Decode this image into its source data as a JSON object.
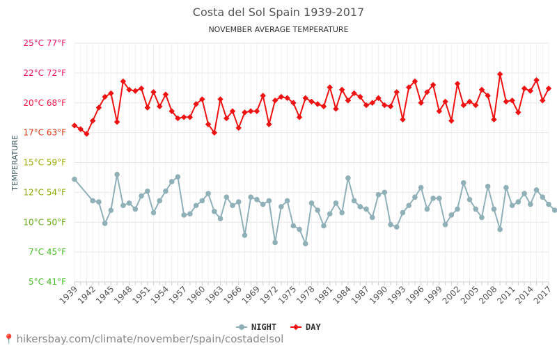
{
  "chart_data": {
    "type": "line",
    "title": "Costa del Sol Spain 1939-2017",
    "subtitle": "NOVEMBER AVERAGE TEMPERATURE",
    "ylabel": "TEMPERATURE",
    "ylim": [
      5,
      25
    ],
    "yticks": [
      {
        "value": 5,
        "label": "5°C 41°F",
        "color": "#44bb22"
      },
      {
        "value": 7.5,
        "label": "7°C 45°F",
        "color": "#44bb22"
      },
      {
        "value": 10,
        "label": "10°C 50°F",
        "color": "#66aa11"
      },
      {
        "value": 12.5,
        "label": "12°C 54°F",
        "color": "#88aa00"
      },
      {
        "value": 15,
        "label": "15°C 59°F",
        "color": "#99aa00"
      },
      {
        "value": 17.5,
        "label": "17°C 63°F",
        "color": "#dd3311"
      },
      {
        "value": 20,
        "label": "20°C 68°F",
        "color": "#ee1144"
      },
      {
        "value": 22.5,
        "label": "22°C 72°F",
        "color": "#ee1155"
      },
      {
        "value": 25,
        "label": "25°C 77°F",
        "color": "#ee1166"
      }
    ],
    "x_tick_labels": [
      "1939",
      "1942",
      "1945",
      "1948",
      "1951",
      "1954",
      "1957",
      "1960",
      "1963",
      "1966",
      "1969",
      "1972",
      "1975",
      "1978",
      "1981",
      "1984",
      "1987",
      "1990",
      "1993",
      "1996",
      "1999",
      "2002",
      "2005",
      "2008",
      "2011",
      "2014",
      "2017"
    ],
    "x_start": 1939,
    "x_end": 2017,
    "grid": true,
    "legend_position": "bottom",
    "series": [
      {
        "name": "NIGHT",
        "color": "#90b0b8",
        "points": [
          [
            1939,
            13.6
          ],
          [
            1942,
            11.8
          ],
          [
            1943,
            11.7
          ],
          [
            1944,
            9.9
          ],
          [
            1945,
            11.0
          ],
          [
            1946,
            14.0
          ],
          [
            1947,
            11.4
          ],
          [
            1948,
            11.6
          ],
          [
            1949,
            11.1
          ],
          [
            1950,
            12.2
          ],
          [
            1951,
            12.6
          ],
          [
            1952,
            10.8
          ],
          [
            1953,
            11.8
          ],
          [
            1954,
            12.6
          ],
          [
            1955,
            13.4
          ],
          [
            1956,
            13.8
          ],
          [
            1957,
            10.6
          ],
          [
            1958,
            10.7
          ],
          [
            1959,
            11.4
          ],
          [
            1960,
            11.8
          ],
          [
            1961,
            12.4
          ],
          [
            1962,
            10.9
          ],
          [
            1963,
            10.3
          ],
          [
            1964,
            12.1
          ],
          [
            1965,
            11.4
          ],
          [
            1966,
            11.7
          ],
          [
            1967,
            8.9
          ],
          [
            1968,
            12.1
          ],
          [
            1969,
            11.9
          ],
          [
            1970,
            11.5
          ],
          [
            1971,
            11.8
          ],
          [
            1972,
            8.3
          ],
          [
            1973,
            11.3
          ],
          [
            1974,
            11.8
          ],
          [
            1975,
            9.7
          ],
          [
            1976,
            9.4
          ],
          [
            1977,
            8.2
          ],
          [
            1978,
            11.6
          ],
          [
            1979,
            11.0
          ],
          [
            1980,
            9.7
          ],
          [
            1981,
            10.7
          ],
          [
            1982,
            11.6
          ],
          [
            1983,
            10.8
          ],
          [
            1984,
            13.7
          ],
          [
            1985,
            11.8
          ],
          [
            1986,
            11.3
          ],
          [
            1987,
            11.1
          ],
          [
            1988,
            10.4
          ],
          [
            1989,
            12.3
          ],
          [
            1990,
            12.5
          ],
          [
            1991,
            9.8
          ],
          [
            1992,
            9.6
          ],
          [
            1993,
            10.8
          ],
          [
            1994,
            11.4
          ],
          [
            1995,
            12.1
          ],
          [
            1996,
            12.9
          ],
          [
            1997,
            11.1
          ],
          [
            1998,
            12.0
          ],
          [
            1999,
            12.0
          ],
          [
            2000,
            9.8
          ],
          [
            2001,
            10.6
          ],
          [
            2002,
            11.1
          ],
          [
            2003,
            13.3
          ],
          [
            2004,
            11.9
          ],
          [
            2005,
            11.1
          ],
          [
            2006,
            10.4
          ],
          [
            2007,
            13.0
          ],
          [
            2008,
            11.1
          ],
          [
            2009,
            9.4
          ],
          [
            2010,
            12.9
          ],
          [
            2011,
            11.4
          ],
          [
            2012,
            11.7
          ],
          [
            2013,
            12.4
          ],
          [
            2014,
            11.5
          ],
          [
            2015,
            12.7
          ],
          [
            2016,
            12.1
          ],
          [
            2017,
            11.5
          ],
          [
            2018,
            11.0
          ]
        ]
      },
      {
        "name": "DAY",
        "color": "#ee1111",
        "points": [
          [
            1939,
            18.1
          ],
          [
            1940,
            17.8
          ],
          [
            1941,
            17.4
          ],
          [
            1942,
            18.5
          ],
          [
            1943,
            19.6
          ],
          [
            1944,
            20.5
          ],
          [
            1945,
            20.8
          ],
          [
            1946,
            18.4
          ],
          [
            1947,
            21.8
          ],
          [
            1948,
            21.1
          ],
          [
            1949,
            21.0
          ],
          [
            1950,
            21.2
          ],
          [
            1951,
            19.6
          ],
          [
            1952,
            20.9
          ],
          [
            1953,
            19.7
          ],
          [
            1954,
            20.7
          ],
          [
            1955,
            19.3
          ],
          [
            1956,
            18.7
          ],
          [
            1957,
            18.8
          ],
          [
            1958,
            18.8
          ],
          [
            1959,
            19.9
          ],
          [
            1960,
            20.3
          ],
          [
            1961,
            18.2
          ],
          [
            1962,
            17.5
          ],
          [
            1963,
            20.3
          ],
          [
            1964,
            18.7
          ],
          [
            1965,
            19.3
          ],
          [
            1966,
            17.9
          ],
          [
            1967,
            19.2
          ],
          [
            1968,
            19.3
          ],
          [
            1969,
            19.3
          ],
          [
            1970,
            20.6
          ],
          [
            1971,
            18.2
          ],
          [
            1972,
            20.2
          ],
          [
            1973,
            20.5
          ],
          [
            1974,
            20.4
          ],
          [
            1975,
            20.0
          ],
          [
            1976,
            18.8
          ],
          [
            1977,
            20.4
          ],
          [
            1978,
            20.1
          ],
          [
            1979,
            19.9
          ],
          [
            1980,
            19.7
          ],
          [
            1981,
            21.3
          ],
          [
            1982,
            19.5
          ],
          [
            1983,
            21.1
          ],
          [
            1984,
            20.2
          ],
          [
            1985,
            20.8
          ],
          [
            1986,
            20.5
          ],
          [
            1987,
            19.8
          ],
          [
            1988,
            20.0
          ],
          [
            1989,
            20.4
          ],
          [
            1990,
            19.8
          ],
          [
            1991,
            19.7
          ],
          [
            1992,
            20.9
          ],
          [
            1993,
            18.6
          ],
          [
            1994,
            21.3
          ],
          [
            1995,
            21.8
          ],
          [
            1996,
            20.0
          ],
          [
            1997,
            20.9
          ],
          [
            1998,
            21.5
          ],
          [
            1999,
            19.3
          ],
          [
            2000,
            20.1
          ],
          [
            2001,
            18.5
          ],
          [
            2002,
            21.6
          ],
          [
            2003,
            19.8
          ],
          [
            2004,
            20.1
          ],
          [
            2005,
            19.8
          ],
          [
            2006,
            21.1
          ],
          [
            2007,
            20.6
          ],
          [
            2008,
            18.6
          ],
          [
            2009,
            22.4
          ],
          [
            2010,
            20.1
          ],
          [
            2011,
            20.2
          ],
          [
            2012,
            19.2
          ],
          [
            2013,
            21.2
          ],
          [
            2014,
            21.0
          ],
          [
            2015,
            21.9
          ],
          [
            2016,
            20.2
          ],
          [
            2017,
            21.2
          ]
        ]
      }
    ]
  },
  "footer": {
    "pin_icon": "location-pin-icon",
    "url": "hikersbay.com/climate/november/spain/costadelsol"
  }
}
